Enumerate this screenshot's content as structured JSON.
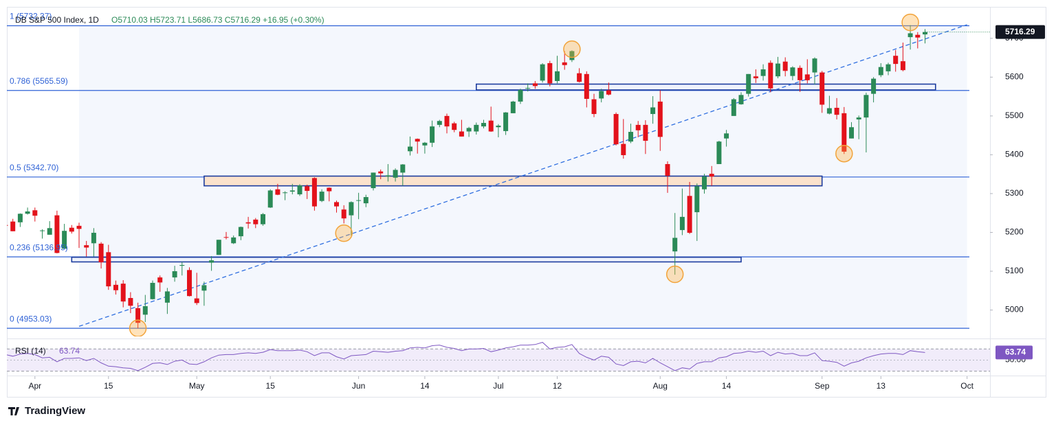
{
  "chart_data": {
    "type": "candlestick",
    "title": "DB S&P 500 Index, 1D",
    "quote": "O5710.03  H5723.71  L5686.73  C5716.29  +16.95 (+0.30%)",
    "brand": "TradingView",
    "up_color": "#2b8a57",
    "down_color": "#e3121b",
    "ylim": [
      4932,
      5781
    ],
    "yticks": [
      5000,
      5100,
      5200,
      5300,
      5400,
      5500,
      5600,
      5700
    ],
    "x": [
      "Mar 25",
      "Mar 26",
      "Mar 27",
      "Mar 28",
      "Apr 1",
      "Apr 2",
      "Apr 3",
      "Apr 4",
      "Apr 5",
      "Apr 8",
      "Apr 9",
      "Apr 10",
      "Apr 11",
      "Apr 12",
      "Apr 15",
      "Apr 16",
      "Apr 17",
      "Apr 18",
      "Apr 19",
      "Apr 22",
      "Apr 23",
      "Apr 24",
      "Apr 25",
      "Apr 26",
      "Apr 29",
      "Apr 30",
      "May 1",
      "May 2",
      "May 3",
      "May 6",
      "May 7",
      "May 8",
      "May 9",
      "May 10",
      "May 13",
      "May 14",
      "May 15",
      "May 16",
      "May 17",
      "May 20",
      "May 21",
      "May 22",
      "May 23",
      "May 24",
      "May 28",
      "May 29",
      "May 30",
      "May 31",
      "Jun 3",
      "Jun 4",
      "Jun 5",
      "Jun 6",
      "Jun 7",
      "Jun 10",
      "Jun 11",
      "Jun 12",
      "Jun 13",
      "Jun 14",
      "Jun 17",
      "Jun 18",
      "Jun 20",
      "Jun 21",
      "Jun 24",
      "Jun 25",
      "Jun 26",
      "Jun 27",
      "Jun 28",
      "Jul 1",
      "Jul 2",
      "Jul 3",
      "Jul 5",
      "Jul 8",
      "Jul 9",
      "Jul 10",
      "Jul 11",
      "Jul 12",
      "Jul 15",
      "Jul 16",
      "Jul 17",
      "Jul 18",
      "Jul 19",
      "Jul 22",
      "Jul 23",
      "Jul 24",
      "Jul 25",
      "Jul 26",
      "Jul 29",
      "Jul 30",
      "Jul 31",
      "Aug 1",
      "Aug 2",
      "Aug 5",
      "Aug 6",
      "Aug 7",
      "Aug 8",
      "Aug 9",
      "Aug 12",
      "Aug 13",
      "Aug 14",
      "Aug 15",
      "Aug 16",
      "Aug 19",
      "Aug 20",
      "Aug 21",
      "Aug 22",
      "Aug 23",
      "Aug 26",
      "Aug 27",
      "Aug 28",
      "Aug 29",
      "Aug 30",
      "Sep 3",
      "Sep 4",
      "Sep 5",
      "Sep 6",
      "Sep 9",
      "Sep 10",
      "Sep 11",
      "Sep 12",
      "Sep 13",
      "Sep 16",
      "Sep 17",
      "Sep 18",
      "Sep 19",
      "Sep 20",
      "Sep 23"
    ],
    "ohlc": [
      [
        5219,
        5229,
        5216,
        5218
      ],
      [
        5228,
        5235,
        5203,
        5203
      ],
      [
        5226,
        5249,
        5214,
        5248
      ],
      [
        5248,
        5264,
        5246,
        5254
      ],
      [
        5257,
        5264,
        5228,
        5243
      ],
      [
        5204,
        5208,
        5184,
        5205
      ],
      [
        5194,
        5229,
        5194,
        5211
      ],
      [
        5244,
        5256,
        5146,
        5147
      ],
      [
        5158,
        5222,
        5157,
        5204
      ],
      [
        5212,
        5219,
        5197,
        5202
      ],
      [
        5217,
        5225,
        5160,
        5209
      ],
      [
        5167,
        5178,
        5138,
        5161
      ],
      [
        5172,
        5211,
        5138,
        5199
      ],
      [
        5171,
        5175,
        5107,
        5123
      ],
      [
        5149,
        5168,
        5052,
        5061
      ],
      [
        5065,
        5076,
        5040,
        5051
      ],
      [
        5068,
        5077,
        5007,
        5022
      ],
      [
        5031,
        5046,
        4992,
        5011
      ],
      [
        5005,
        5019,
        4953,
        4967
      ],
      [
        4988,
        5039,
        4969,
        5010
      ],
      [
        5028,
        5076,
        5027,
        5070
      ],
      [
        5084,
        5089,
        5047,
        5071
      ],
      [
        5019,
        5057,
        4990,
        5048
      ],
      [
        5084,
        5114,
        5073,
        5100
      ],
      [
        5114,
        5124,
        5089,
        5116
      ],
      [
        5103,
        5110,
        5035,
        5036
      ],
      [
        5030,
        5096,
        5013,
        5018
      ],
      [
        5050,
        5073,
        5011,
        5064
      ],
      [
        5122,
        5139,
        5101,
        5128
      ],
      [
        5142,
        5181,
        5142,
        5181
      ],
      [
        5188,
        5201,
        5182,
        5187
      ],
      [
        5172,
        5192,
        5170,
        5187
      ],
      [
        5190,
        5215,
        5180,
        5214
      ],
      [
        5226,
        5240,
        5210,
        5223
      ],
      [
        5233,
        5237,
        5211,
        5221
      ],
      [
        5221,
        5250,
        5217,
        5247
      ],
      [
        5264,
        5311,
        5263,
        5308
      ],
      [
        5311,
        5325,
        5296,
        5297
      ],
      [
        5303,
        5306,
        5283,
        5303
      ],
      [
        5305,
        5325,
        5298,
        5308
      ],
      [
        5298,
        5324,
        5294,
        5321
      ],
      [
        5319,
        5323,
        5286,
        5307
      ],
      [
        5340,
        5342,
        5256,
        5267
      ],
      [
        5281,
        5311,
        5278,
        5305
      ],
      [
        5315,
        5316,
        5280,
        5306
      ],
      [
        5278,
        5282,
        5251,
        5267
      ],
      [
        5259,
        5270,
        5223,
        5236
      ],
      [
        5244,
        5280,
        5192,
        5278
      ],
      [
        5283,
        5302,
        5234,
        5283
      ],
      [
        5275,
        5297,
        5265,
        5291
      ],
      [
        5314,
        5354,
        5308,
        5354
      ],
      [
        5357,
        5362,
        5337,
        5352
      ],
      [
        5344,
        5376,
        5331,
        5347
      ],
      [
        5341,
        5365,
        5331,
        5361
      ],
      [
        5354,
        5376,
        5320,
        5375
      ],
      [
        5409,
        5447,
        5398,
        5421
      ],
      [
        5441,
        5442,
        5403,
        5434
      ],
      [
        5424,
        5433,
        5403,
        5431
      ],
      [
        5431,
        5488,
        5420,
        5473
      ],
      [
        5477,
        5490,
        5471,
        5487
      ],
      [
        5500,
        5506,
        5455,
        5473
      ],
      [
        5481,
        5485,
        5458,
        5464
      ],
      [
        5460,
        5490,
        5447,
        5447
      ],
      [
        5460,
        5472,
        5446,
        5469
      ],
      [
        5460,
        5483,
        5452,
        5477
      ],
      [
        5473,
        5490,
        5468,
        5482
      ],
      [
        5488,
        5524,
        5459,
        5460
      ],
      [
        5471,
        5479,
        5445,
        5475
      ],
      [
        5461,
        5510,
        5451,
        5509
      ],
      [
        5507,
        5539,
        5507,
        5537
      ],
      [
        5537,
        5570,
        5531,
        5567
      ],
      [
        5572,
        5584,
        5563,
        5572
      ],
      [
        5584,
        5590,
        5570,
        5577
      ],
      [
        5591,
        5636,
        5586,
        5633
      ],
      [
        5636,
        5642,
        5576,
        5584
      ],
      [
        5590,
        5655,
        5584,
        5615
      ],
      [
        5638,
        5667,
        5619,
        5631
      ],
      [
        5644,
        5669,
        5639,
        5667
      ],
      [
        5610,
        5623,
        5586,
        5588
      ],
      [
        5608,
        5615,
        5522,
        5544
      ],
      [
        5543,
        5557,
        5497,
        5505
      ],
      [
        5545,
        5570,
        5535,
        5564
      ],
      [
        5566,
        5586,
        5553,
        5555
      ],
      [
        5505,
        5509,
        5424,
        5427
      ],
      [
        5428,
        5492,
        5390,
        5399
      ],
      [
        5434,
        5480,
        5430,
        5459
      ],
      [
        5477,
        5487,
        5445,
        5463
      ],
      [
        5477,
        5489,
        5402,
        5436
      ],
      [
        5505,
        5551,
        5480,
        5522
      ],
      [
        5537,
        5566,
        5410,
        5446
      ],
      [
        5376,
        5383,
        5302,
        5346
      ],
      [
        5151,
        5250,
        5091,
        5186
      ],
      [
        5206,
        5313,
        5193,
        5240
      ],
      [
        5294,
        5330,
        5196,
        5199
      ],
      [
        5252,
        5326,
        5178,
        5319
      ],
      [
        5311,
        5351,
        5300,
        5344
      ],
      [
        5351,
        5371,
        5320,
        5344
      ],
      [
        5376,
        5436,
        5376,
        5434
      ],
      [
        5442,
        5464,
        5421,
        5455
      ],
      [
        5500,
        5546,
        5500,
        5543
      ],
      [
        5530,
        5561,
        5529,
        5554
      ],
      [
        5557,
        5608,
        5550,
        5608
      ],
      [
        5602,
        5620,
        5585,
        5597
      ],
      [
        5603,
        5633,
        5591,
        5620
      ],
      [
        5637,
        5643,
        5561,
        5571
      ],
      [
        5602,
        5652,
        5597,
        5635
      ],
      [
        5640,
        5651,
        5602,
        5616
      ],
      [
        5603,
        5628,
        5592,
        5625
      ],
      [
        5624,
        5630,
        5562,
        5592
      ],
      [
        5607,
        5646,
        5584,
        5592
      ],
      [
        5612,
        5651,
        5581,
        5648
      ],
      [
        5612,
        5616,
        5508,
        5529
      ],
      [
        5506,
        5552,
        5504,
        5520
      ],
      [
        5521,
        5546,
        5491,
        5503
      ],
      [
        5507,
        5523,
        5402,
        5408
      ],
      [
        5442,
        5484,
        5442,
        5471
      ],
      [
        5491,
        5501,
        5440,
        5496
      ],
      [
        5496,
        5560,
        5406,
        5554
      ],
      [
        5557,
        5600,
        5535,
        5596
      ],
      [
        5605,
        5636,
        5600,
        5626
      ],
      [
        5615,
        5637,
        5605,
        5633
      ],
      [
        5655,
        5670,
        5614,
        5634
      ],
      [
        5641,
        5689,
        5615,
        5618
      ],
      [
        5703,
        5734,
        5671,
        5713
      ],
      [
        5709,
        5716,
        5674,
        5702
      ],
      [
        5710.03,
        5723.71,
        5686.73,
        5716.29
      ]
    ],
    "xticks": [
      {
        "value": "Apr 1",
        "label": "Apr"
      },
      {
        "value": "Apr 15",
        "label": "15"
      },
      {
        "value": "May 1",
        "label": "May"
      },
      {
        "value": "May 15",
        "label": "15"
      },
      {
        "value": "Jun 3",
        "label": "Jun"
      },
      {
        "value": "Jun 14",
        "label": "14"
      },
      {
        "value": "Jul 1",
        "label": "Jul"
      },
      {
        "value": "Jul 12",
        "label": "12"
      },
      {
        "value": "Aug 1",
        "label": "Aug"
      },
      {
        "value": "Aug 14",
        "label": "14"
      },
      {
        "value": "Sep 3",
        "label": "Sep"
      },
      {
        "value": "Sep 13",
        "label": "13"
      },
      {
        "value": "Oct 1",
        "label": "Oct"
      }
    ],
    "fib_color": "#2f62d6",
    "fib_levels": [
      {
        "value": 5732.37,
        "label": "1 (5732.37)"
      },
      {
        "value": 5565.59,
        "label": "0.786 (5565.59)"
      },
      {
        "value": 5342.7,
        "label": "0.5 (5342.70)"
      },
      {
        "value": 5136.95,
        "label": "0.236 (5136.95)"
      },
      {
        "value": 4953.03,
        "label": "0 (4953.03)"
      }
    ],
    "trendline": {
      "x": [
        "Apr 9",
        "Oct 1"
      ],
      "values": [
        4958,
        5735
      ],
      "color": "#2f6fe0"
    },
    "zones": [
      {
        "x": [
          "Jun 26",
          "Sep 25"
        ],
        "values": [
          5567,
          5582
        ],
        "color": "#eef2fc"
      },
      {
        "x": [
          "May 2",
          "Sep 3"
        ],
        "values": [
          5320,
          5345
        ],
        "color": "#fbe2cc"
      },
      {
        "x": [
          "Apr 8",
          "Aug 16"
        ],
        "values": [
          5124,
          5136
        ],
        "color": "#eef2fc"
      }
    ],
    "highlights": [
      {
        "x": "Apr 19",
        "value": 4953
      },
      {
        "x": "May 30",
        "value": 5198
      },
      {
        "x": "Jul 16",
        "value": 5672
      },
      {
        "x": "Aug 5",
        "value": 5092
      },
      {
        "x": "Sep 6",
        "value": 5403
      },
      {
        "x": "Sep 19",
        "value": 5741
      }
    ],
    "rsi": {
      "name": "RSI (14)",
      "color": "#7e57c2",
      "values": [
        60,
        57,
        61,
        62,
        60,
        54,
        55,
        47,
        53,
        53,
        54,
        49,
        53,
        45,
        39,
        38,
        36,
        35,
        31,
        37,
        44,
        45,
        42,
        48,
        50,
        43,
        42,
        47,
        54,
        59,
        60,
        60,
        62,
        63,
        62,
        64,
        69,
        67,
        67,
        67,
        68,
        65,
        58,
        63,
        63,
        56,
        52,
        58,
        59,
        60,
        66,
        65,
        64,
        66,
        67,
        72,
        73,
        72,
        76,
        77,
        73,
        71,
        67,
        70,
        70,
        71,
        65,
        68,
        72,
        74,
        77,
        77,
        78,
        82,
        70,
        73,
        74,
        78,
        62,
        55,
        50,
        57,
        55,
        43,
        40,
        47,
        48,
        45,
        53,
        45,
        38,
        31,
        36,
        34,
        44,
        47,
        47,
        54,
        56,
        62,
        63,
        66,
        64,
        66,
        58,
        64,
        61,
        62,
        58,
        58,
        63,
        49,
        48,
        46,
        39,
        45,
        48,
        54,
        58,
        61,
        62,
        62,
        60,
        67,
        65,
        63.74
      ]
    },
    "rsi_ylim": [
      27,
      84
    ],
    "rsi_levels": [
      70,
      30
    ],
    "rsi_yticks": [
      {
        "value": 50,
        "label": "50.00"
      }
    ]
  }
}
